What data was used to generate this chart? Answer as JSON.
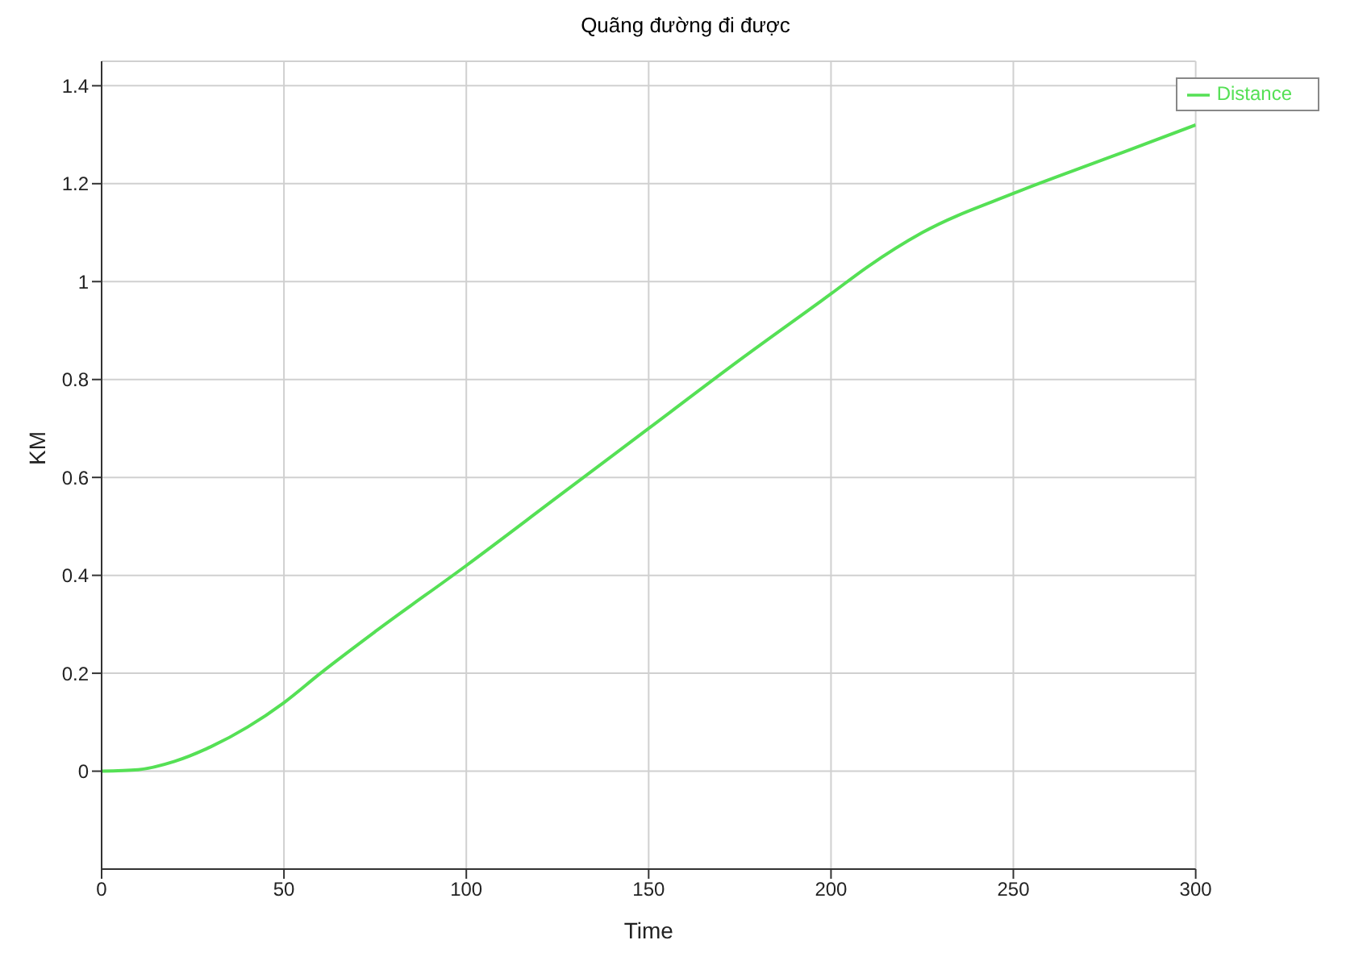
{
  "chart_data": {
    "type": "line",
    "title": "Quãng đường đi được",
    "xlabel": "Time",
    "ylabel": "KM",
    "x": [
      0,
      10,
      20,
      30,
      40,
      50,
      60,
      75,
      100,
      125,
      150,
      175,
      200,
      210,
      225,
      250,
      275,
      300
    ],
    "series": [
      {
        "name": "Distance",
        "color": "#55e055",
        "values": [
          0,
          0.003,
          0.02,
          0.05,
          0.09,
          0.14,
          0.2,
          0.285,
          0.42,
          0.56,
          0.7,
          0.84,
          0.975,
          1.03,
          1.1,
          1.18,
          1.25,
          1.32
        ]
      }
    ],
    "xlim": [
      0,
      300
    ],
    "xticks": [
      0,
      50,
      100,
      150,
      200,
      250,
      300
    ],
    "ylim": [
      -0.2,
      1.45
    ],
    "yticks": [
      0,
      0.2,
      0.4,
      0.6,
      0.8,
      1,
      1.2,
      1.4
    ],
    "grid": true,
    "legend": "top right",
    "marker": "none",
    "line_style": "solid"
  }
}
